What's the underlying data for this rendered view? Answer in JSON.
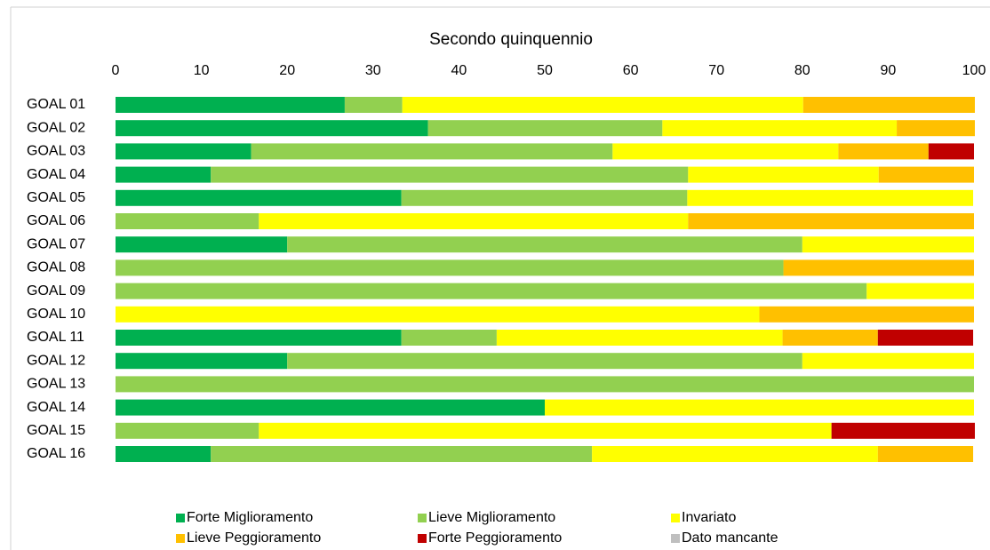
{
  "chart_data": {
    "type": "stacked-barh",
    "title": "Secondo quinquennio",
    "categories": [
      "GOAL 01",
      "GOAL 02",
      "GOAL 03",
      "GOAL 04",
      "GOAL 05",
      "GOAL 06",
      "GOAL 07",
      "GOAL 08",
      "GOAL 09",
      "GOAL 10",
      "GOAL 11",
      "GOAL 12",
      "GOAL 13",
      "GOAL 14",
      "GOAL 15",
      "GOAL 16"
    ],
    "series": [
      {
        "name": "Forte Miglioramento",
        "color": "#00b050",
        "values": [
          26.7,
          36.4,
          15.8,
          11.1,
          33.3,
          0,
          20,
          0,
          0,
          0,
          33.3,
          20,
          0,
          50,
          0,
          11.1
        ]
      },
      {
        "name": "Lieve Miglioramento",
        "color": "#92d050",
        "values": [
          6.7,
          27.3,
          42.1,
          55.6,
          33.3,
          16.7,
          60,
          77.8,
          87.5,
          0,
          11.1,
          60,
          100,
          0,
          16.7,
          44.4
        ]
      },
      {
        "name": "Invariato",
        "color": "#ffff00",
        "values": [
          46.7,
          27.3,
          26.3,
          22.2,
          33.3,
          50,
          20,
          0,
          12.5,
          75,
          33.3,
          20,
          0,
          50,
          66.7,
          33.3
        ]
      },
      {
        "name": "Lieve Peggioramento",
        "color": "#ffc000",
        "values": [
          20,
          9.1,
          10.5,
          11.1,
          0,
          33.3,
          0,
          22.2,
          0,
          25,
          11.1,
          0,
          0,
          0,
          0,
          11.1
        ]
      },
      {
        "name": "Forte Peggioramento",
        "color": "#c00000",
        "values": [
          0,
          0,
          5.3,
          0,
          0,
          0,
          0,
          0,
          0,
          0,
          11.1,
          0,
          0,
          0,
          16.7,
          0
        ]
      },
      {
        "name": "Dato mancante",
        "color": "#bfbfbf",
        "values": [
          0,
          0,
          0,
          0,
          0,
          0,
          0,
          0,
          0,
          0,
          0,
          0,
          0,
          0,
          0,
          0
        ]
      }
    ],
    "xlim": [
      0,
      100
    ],
    "xticks": [
      0,
      10,
      20,
      30,
      40,
      50,
      60,
      70,
      80,
      90,
      100
    ],
    "grid": false
  }
}
